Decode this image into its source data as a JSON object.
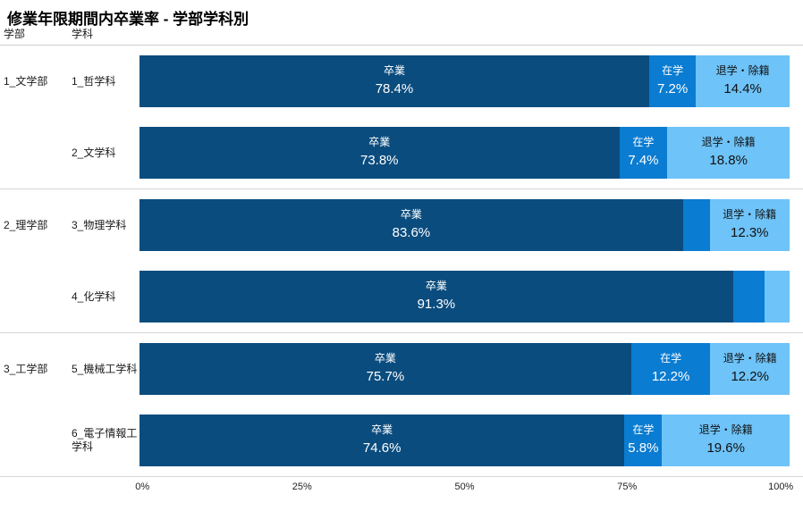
{
  "title": "修業年限期間内卒業率 - 学部学科別",
  "columns": {
    "faculty": "学部",
    "department": "学科"
  },
  "colors": {
    "graduated": "#0a4c7e",
    "enrolled": "#0a7cd1",
    "withdrawn": "#6ec3f8"
  },
  "chart_data": {
    "type": "bar",
    "orientation": "horizontal",
    "stacked": true,
    "title": "修業年限期間内卒業率 - 学部学科別",
    "categories": [
      "1_哲学科",
      "2_文学科",
      "3_物理学科",
      "4_化学科",
      "5_機械工学科",
      "6_電子情報工学科"
    ],
    "category_groups": [
      "1_文学部",
      "1_文学部",
      "2_理学部",
      "2_理学部",
      "3_工学部",
      "3_工学部"
    ],
    "series": [
      {
        "name": "卒業",
        "values": [
          78.4,
          73.8,
          83.6,
          91.3,
          75.7,
          74.6
        ]
      },
      {
        "name": "在学",
        "values": [
          7.2,
          7.4,
          4.1,
          4.8,
          12.2,
          5.8
        ]
      },
      {
        "name": "退学・除籍",
        "values": [
          14.4,
          18.8,
          12.3,
          3.9,
          12.2,
          19.6
        ]
      }
    ],
    "xlim": [
      0,
      100
    ],
    "x_ticks": [
      "0%",
      "25%",
      "50%",
      "75%",
      "100%"
    ],
    "grid": false,
    "legend": "labels-inside-bars"
  },
  "rows": [
    {
      "faculty": "1_文学部",
      "department": "1_哲学科",
      "segments": [
        {
          "label": "卒業",
          "pct": "78.4%"
        },
        {
          "label": "在学",
          "pct": "7.2%"
        },
        {
          "label": "退学・除籍",
          "pct": "14.4%"
        }
      ]
    },
    {
      "faculty": "",
      "department": "2_文学科",
      "segments": [
        {
          "label": "卒業",
          "pct": "73.8%"
        },
        {
          "label": "在学",
          "pct": "7.4%"
        },
        {
          "label": "退学・除籍",
          "pct": "18.8%"
        }
      ]
    },
    {
      "faculty": "2_理学部",
      "department": "3_物理学科",
      "segments": [
        {
          "label": "卒業",
          "pct": "83.6%"
        },
        {
          "label": "",
          "pct": ""
        },
        {
          "label": "退学・除籍",
          "pct": "12.3%"
        }
      ]
    },
    {
      "faculty": "",
      "department": "4_化学科",
      "segments": [
        {
          "label": "卒業",
          "pct": "91.3%"
        },
        {
          "label": "",
          "pct": ""
        },
        {
          "label": "",
          "pct": ""
        }
      ]
    },
    {
      "faculty": "3_工学部",
      "department": "5_機械工学科",
      "segments": [
        {
          "label": "卒業",
          "pct": "75.7%"
        },
        {
          "label": "在学",
          "pct": "12.2%"
        },
        {
          "label": "退学・除籍",
          "pct": "12.2%"
        }
      ]
    },
    {
      "faculty": "",
      "department": "6_電子情報工学科",
      "segments": [
        {
          "label": "卒業",
          "pct": "74.6%"
        },
        {
          "label": "在学",
          "pct": "5.8%"
        },
        {
          "label": "退学・除籍",
          "pct": "19.6%"
        }
      ]
    }
  ]
}
